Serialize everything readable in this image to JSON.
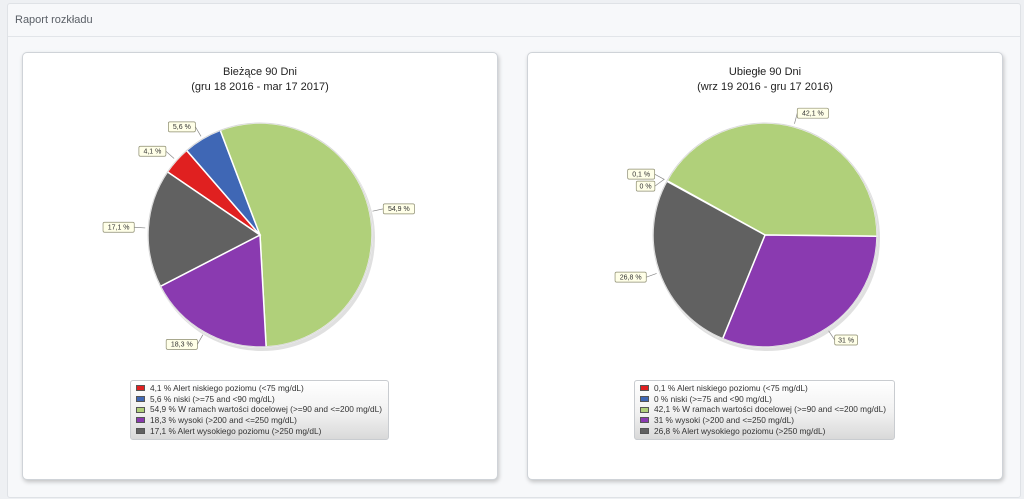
{
  "panel": {
    "title": "Raport rozkładu"
  },
  "chart_data": [
    {
      "type": "pie",
      "title": "Bieżące 90 Dni",
      "subtitle": "(gru 18 2016 - mar 17 2017)",
      "categories": [
        "Alert niskiego poziomu (<75 mg/dL)",
        "niski (>=75 and <90 mg/dL)",
        "W ramach wartości docelowej (>=90 and <=200 mg/dL)",
        "wysoki (>200 and <=250 mg/dL)",
        "Alert wysokiego poziomu (>250 mg/dL)"
      ],
      "values": [
        4.1,
        5.6,
        54.9,
        18.3,
        17.1
      ],
      "value_labels": [
        "4,1 %",
        "5,6 %",
        "54,9 %",
        "18,3 %",
        "17,1 %"
      ],
      "legend_entries": [
        "4,1 % Alert niskiego poziomu (<75 mg/dL)",
        "5,6 % niski (>=75 and <90 mg/dL)",
        "54,9 % W ramach wartości docelowej (>=90 and <=200 mg/dL)",
        "18,3 %  wysoki (>200 and <=250 mg/dL)",
        "17,1 %  Alert wysokiego poziomu (>250 mg/dL)"
      ],
      "colors": [
        "#e02020",
        "#3f67b5",
        "#b0d07a",
        "#8a3ab0",
        "#616161"
      ],
      "legend_placement": "bottom"
    },
    {
      "type": "pie",
      "title": "Ubiegłe 90 Dni",
      "subtitle": "(wrz 19 2016 - gru 17 2016)",
      "categories": [
        "Alert niskiego poziomu (<75 mg/dL)",
        "niski (>=75 and <90 mg/dL)",
        "W ramach wartości docelowej (>=90 and <=200 mg/dL)",
        "wysoki (>200 and <=250 mg/dL)",
        "Alert wysokiego poziomu (>250 mg/dL)"
      ],
      "values": [
        0.1,
        0,
        42.1,
        31,
        26.8
      ],
      "value_labels": [
        "0,1 %",
        "0 %",
        "42,1 %",
        "31 %",
        "26,8 %"
      ],
      "legend_entries": [
        "0,1 % Alert niskiego poziomu (<75 mg/dL)",
        "0 % niski (>=75 and <90 mg/dL)",
        "42,1 % W ramach wartości docelowej (>=90 and <=200 mg/dL)",
        "31 %  wysoki (>200 and <=250 mg/dL)",
        "26,8 %  Alert wysokiego poziomu (>250 mg/dL)"
      ],
      "colors": [
        "#e02020",
        "#3f67b5",
        "#b0d07a",
        "#8a3ab0",
        "#616161"
      ],
      "legend_placement": "bottom"
    }
  ]
}
